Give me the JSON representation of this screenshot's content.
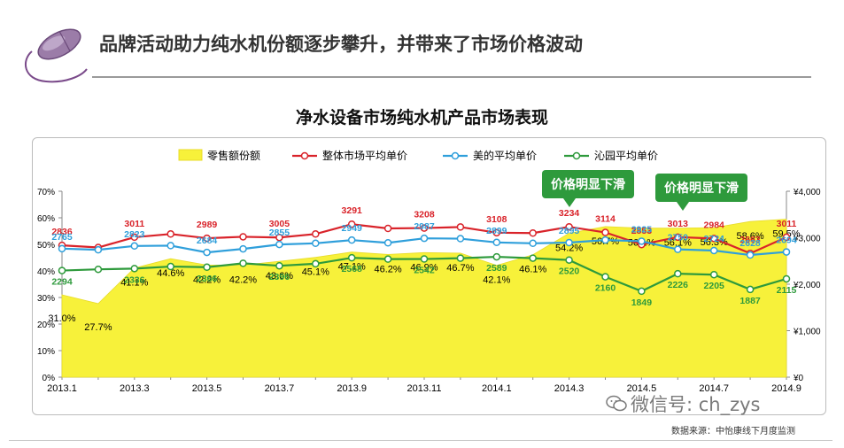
{
  "slide": {
    "title": "品牌活动助力纯水机份额逐步攀升，并带来了市场价格波动",
    "source": "数据来源：中怡康线下月度监测",
    "wechat": "微信号: ch_zys"
  },
  "callouts": [
    "价格明显下滑",
    "价格明显下滑"
  ],
  "colors": {
    "share_fill": "#f7f13a",
    "overall": "#d9232a",
    "midea": "#2f9fdb",
    "qinyuan": "#2e9a3c",
    "callout": "#2e9a3c"
  },
  "icons": [
    "mouse-icon",
    "wechat-icon"
  ],
  "chart_data": {
    "type": "area",
    "title": "净水设备市场纯水机产品市场表现",
    "x": [
      "2013.1",
      "2013.2",
      "2013.3",
      "2013.4",
      "2013.5",
      "2013.6",
      "2013.7",
      "2013.8",
      "2013.9",
      "2013.10",
      "2013.11",
      "2013.12",
      "2014.1",
      "2014.2",
      "2014.3",
      "2014.4",
      "2014.5",
      "2014.6",
      "2014.7",
      "2014.8",
      "2014.9"
    ],
    "x_tick_labels": [
      "2013.1",
      "2013.3",
      "2013.5",
      "2013.7",
      "2013.9",
      "2013.11",
      "2014.1",
      "2014.3",
      "2014.5",
      "2014.7",
      "2014.9"
    ],
    "y_left": {
      "ticks": [
        "0%",
        "10%",
        "20%",
        "30%",
        "40%",
        "50%",
        "60%",
        "70%"
      ],
      "range": [
        0,
        70
      ]
    },
    "y_right": {
      "ticks": [
        "¥0",
        "¥1,000",
        "¥2,000",
        "¥3,000",
        "¥4,000"
      ],
      "range": [
        0,
        4000
      ]
    },
    "legend_position": "top",
    "series": [
      {
        "name": "零售额份额",
        "axis": "left",
        "kind": "area",
        "values": [
          31.0,
          27.7,
          41.1,
          44.6,
          42.2,
          42.2,
          43.6,
          45.1,
          47.1,
          46.2,
          46.9,
          46.7,
          42.1,
          46.1,
          54.2,
          56.7,
          56.1,
          56.1,
          56.3,
          58.6,
          59.5
        ],
        "labels": [
          "31.0%",
          "27.7%",
          "41.1%",
          "44.6%",
          "42.2%",
          "42.2%",
          "43.6%",
          "45.1%",
          "47.1%",
          "46.2%",
          "46.9%",
          "46.7%",
          "42.1%",
          "46.1%",
          "54.2%",
          "56.7%",
          "56.1%",
          "56.1%",
          "56.3%",
          "58.6%",
          "59.5%"
        ]
      },
      {
        "name": "整体市场平均单价",
        "axis": "right",
        "kind": "line",
        "values": [
          2836,
          2790,
          3011,
          3080,
          2989,
          3020,
          3005,
          3080,
          3291,
          3200,
          3208,
          3230,
          3108,
          3100,
          3234,
          3114,
          2853,
          3013,
          2984,
          2663,
          3011
        ],
        "labels": [
          "2836",
          "",
          "3011",
          "",
          "2989",
          "",
          "3005",
          "",
          "3291",
          "",
          "3208",
          "",
          "3108",
          "",
          "3234",
          "3114",
          "2853",
          "3013",
          "2984",
          "2663",
          "3011"
        ]
      },
      {
        "name": "美的平均单价",
        "axis": "right",
        "kind": "line",
        "values": [
          2765,
          2740,
          2823,
          2830,
          2684,
          2760,
          2855,
          2880,
          2949,
          2890,
          2987,
          2980,
          2899,
          2880,
          2895,
          2950,
          2925,
          2750,
          2724,
          2628,
          2694
        ],
        "labels": [
          "2765",
          "",
          "2823",
          "",
          "2684",
          "",
          "2855",
          "",
          "2949",
          "",
          "2987",
          "",
          "2899",
          "",
          "2895",
          "",
          "2925",
          "2750",
          "2724",
          "2628",
          "2694"
        ]
      },
      {
        "name": "沁园平均单价",
        "axis": "right",
        "kind": "line",
        "values": [
          2294,
          2320,
          2336,
          2380,
          2366,
          2450,
          2396,
          2440,
          2568,
          2540,
          2542,
          2560,
          2589,
          2560,
          2520,
          2160,
          1849,
          2226,
          2205,
          1887,
          2115
        ],
        "labels": [
          "2294",
          "",
          "2336",
          "",
          "2366",
          "",
          "2396",
          "",
          "2568",
          "",
          "2542",
          "",
          "2589",
          "",
          "2520",
          "2160",
          "1849",
          "2226",
          "2205",
          "1887",
          "2115"
        ]
      }
    ]
  }
}
